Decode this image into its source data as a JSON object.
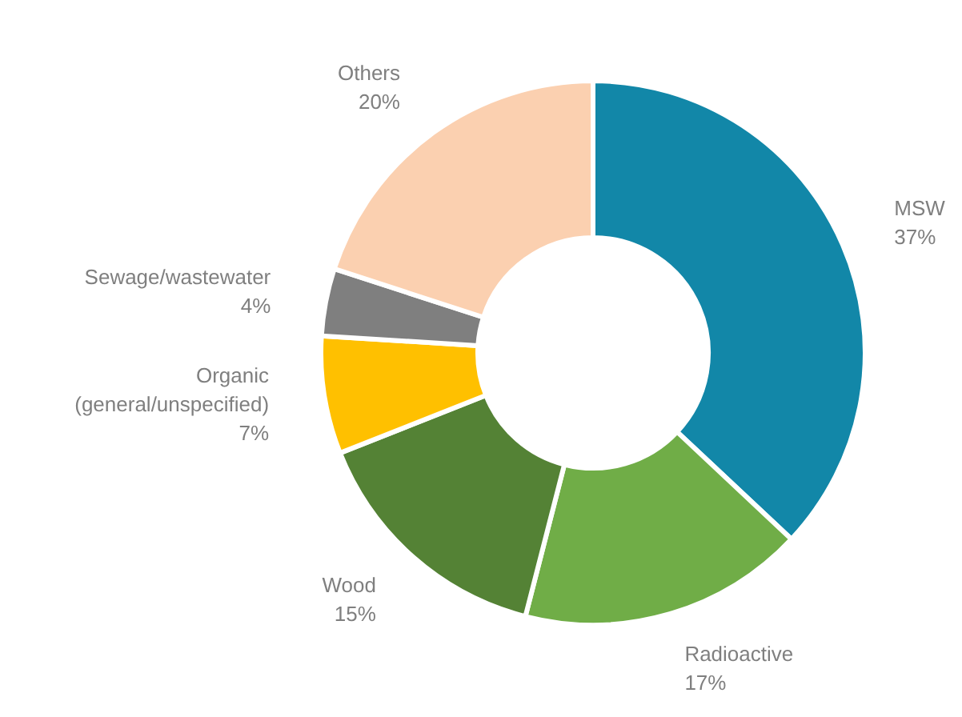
{
  "chart_data": {
    "type": "donut",
    "categories": [
      "MSW",
      "Radioactive",
      "Wood",
      "Organic\n(general/unspecified)",
      "Sewage/wastewater",
      "Others"
    ],
    "values": [
      37,
      17,
      15,
      7,
      4,
      20
    ],
    "value_labels": [
      "37%",
      "17%",
      "15%",
      "7%",
      "4%",
      "20%"
    ],
    "colors": [
      "#1287a8",
      "#70ad47",
      "#548235",
      "#ffc000",
      "#7f7f7f",
      "#fbd0b0"
    ]
  }
}
